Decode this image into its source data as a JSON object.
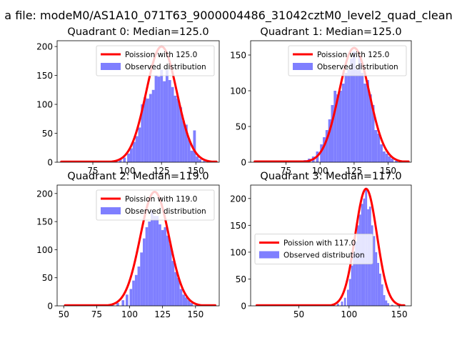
{
  "figure": {
    "suptitle": "a file: modeM0/AS1A10_071T63_9000004486_31042cztM0_level2_quad_clean"
  },
  "colors": {
    "hist": "#7f7fff",
    "curve": "#ff0000",
    "curve_highlight": "#ff8c8c",
    "axis": "#000000",
    "background": "#ffffff"
  },
  "chart_data": [
    {
      "type": "bar",
      "title": "Quadrant 0: Median=125.0",
      "xlim": [
        49,
        167
      ],
      "ylim": [
        0,
        210
      ],
      "xticks": [
        75,
        100,
        125,
        150
      ],
      "yticks": [
        0,
        50,
        100,
        150,
        200
      ],
      "legend": {
        "placement": "upper right",
        "entries": [
          "Poission with 125.0",
          "Observed distribution"
        ]
      },
      "poisson_mean": 125.0,
      "curve_peak": 200,
      "curve_x": [
        52,
        165
      ],
      "bins": [
        [
          52,
          1
        ],
        [
          55,
          1
        ],
        [
          58,
          1
        ],
        [
          61,
          1
        ],
        [
          64,
          1
        ],
        [
          67,
          1
        ],
        [
          70,
          1
        ],
        [
          73,
          1
        ],
        [
          76,
          1
        ],
        [
          79,
          1
        ],
        [
          82,
          1
        ],
        [
          85,
          1
        ],
        [
          88,
          2
        ],
        [
          91,
          3
        ],
        [
          94,
          5
        ],
        [
          97,
          8
        ],
        [
          100,
          15
        ],
        [
          102,
          24
        ],
        [
          104,
          35
        ],
        [
          106,
          45
        ],
        [
          108,
          60
        ],
        [
          110,
          100
        ],
        [
          112,
          112
        ],
        [
          114,
          110
        ],
        [
          116,
          118
        ],
        [
          118,
          125
        ],
        [
          120,
          150
        ],
        [
          122,
          148
        ],
        [
          124,
          160
        ],
        [
          126,
          140
        ],
        [
          128,
          160
        ],
        [
          130,
          142
        ],
        [
          132,
          130
        ],
        [
          134,
          115
        ],
        [
          136,
          110
        ],
        [
          138,
          95
        ],
        [
          140,
          72
        ],
        [
          142,
          65
        ],
        [
          144,
          40
        ],
        [
          146,
          20
        ],
        [
          148,
          55
        ],
        [
          150,
          10
        ],
        [
          152,
          5
        ],
        [
          155,
          2
        ],
        [
          158,
          1
        ],
        [
          162,
          1
        ]
      ]
    },
    {
      "type": "bar",
      "title": "Quadrant 1: Median=125.0",
      "xlim": [
        49,
        167
      ],
      "ylim": [
        0,
        170
      ],
      "xticks": [
        75,
        100,
        125,
        150
      ],
      "yticks": [
        0,
        50,
        100,
        150
      ],
      "legend": {
        "placement": "upper right",
        "entries": [
          "Poission with 125.0",
          "Observed distribution"
        ]
      },
      "poisson_mean": 125.0,
      "curve_peak": 160,
      "curve_x": [
        52,
        165
      ],
      "bins": [
        [
          52,
          1
        ],
        [
          58,
          1
        ],
        [
          64,
          1
        ],
        [
          70,
          1
        ],
        [
          76,
          1
        ],
        [
          79,
          2
        ],
        [
          82,
          1
        ],
        [
          85,
          2
        ],
        [
          88,
          3
        ],
        [
          91,
          5
        ],
        [
          94,
          8
        ],
        [
          97,
          15
        ],
        [
          100,
          25
        ],
        [
          102,
          35
        ],
        [
          104,
          45
        ],
        [
          106,
          60
        ],
        [
          108,
          80
        ],
        [
          110,
          100
        ],
        [
          112,
          95
        ],
        [
          114,
          100
        ],
        [
          116,
          110
        ],
        [
          118,
          125
        ],
        [
          120,
          130
        ],
        [
          122,
          145
        ],
        [
          124,
          155
        ],
        [
          126,
          130
        ],
        [
          128,
          150
        ],
        [
          130,
          125
        ],
        [
          132,
          110
        ],
        [
          134,
          115
        ],
        [
          136,
          95
        ],
        [
          138,
          80
        ],
        [
          140,
          45
        ],
        [
          142,
          40
        ],
        [
          144,
          25
        ],
        [
          146,
          15
        ],
        [
          148,
          12
        ],
        [
          150,
          8
        ],
        [
          152,
          5
        ],
        [
          155,
          2
        ],
        [
          158,
          1
        ],
        [
          162,
          1
        ]
      ]
    },
    {
      "type": "bar",
      "title": "Quadrant 2: Median=119.0",
      "xlim": [
        45,
        168
      ],
      "ylim": [
        0,
        215
      ],
      "xticks": [
        50,
        75,
        100,
        125,
        150
      ],
      "yticks": [
        0,
        50,
        100,
        150,
        200
      ],
      "legend": {
        "placement": "upper right",
        "entries": [
          "Poission with 119.0",
          "Observed distribution"
        ]
      },
      "poisson_mean": 119.0,
      "curve_peak": 203,
      "curve_x": [
        51,
        165
      ],
      "bins": [
        [
          51,
          1
        ],
        [
          56,
          1
        ],
        [
          62,
          1
        ],
        [
          68,
          1
        ],
        [
          74,
          1
        ],
        [
          80,
          2
        ],
        [
          86,
          3
        ],
        [
          90,
          5
        ],
        [
          94,
          10
        ],
        [
          97,
          20
        ],
        [
          100,
          30
        ],
        [
          102,
          45
        ],
        [
          104,
          55
        ],
        [
          106,
          70
        ],
        [
          108,
          95
        ],
        [
          110,
          120
        ],
        [
          112,
          140
        ],
        [
          114,
          150
        ],
        [
          116,
          170
        ],
        [
          118,
          160
        ],
        [
          120,
          160
        ],
        [
          122,
          145
        ],
        [
          124,
          135
        ],
        [
          126,
          140
        ],
        [
          128,
          125
        ],
        [
          130,
          110
        ],
        [
          132,
          80
        ],
        [
          134,
          60
        ],
        [
          136,
          50
        ],
        [
          138,
          30
        ],
        [
          140,
          20
        ],
        [
          142,
          15
        ],
        [
          144,
          10
        ],
        [
          146,
          5
        ],
        [
          150,
          2
        ],
        [
          155,
          1
        ],
        [
          160,
          1
        ]
      ]
    },
    {
      "type": "bar",
      "title": "Quadrant 3: Median=117.0",
      "xlim": [
        2,
        162
      ],
      "ylim": [
        0,
        225
      ],
      "xticks": [
        50,
        100,
        150
      ],
      "yticks": [
        0,
        50,
        100,
        150,
        200
      ],
      "legend": {
        "placement": "center left",
        "entries": [
          "Poission with 117.0",
          "Observed distribution"
        ]
      },
      "poisson_mean": 117.0,
      "curve_peak": 218,
      "curve_x": [
        8,
        155
      ],
      "bins": [
        [
          8,
          1
        ],
        [
          20,
          1
        ],
        [
          30,
          1
        ],
        [
          40,
          1
        ],
        [
          50,
          1
        ],
        [
          60,
          1
        ],
        [
          70,
          1
        ],
        [
          78,
          1
        ],
        [
          84,
          2
        ],
        [
          88,
          4
        ],
        [
          92,
          8
        ],
        [
          95,
          15
        ],
        [
          98,
          30
        ],
        [
          100,
          50
        ],
        [
          102,
          75
        ],
        [
          104,
          100
        ],
        [
          106,
          120
        ],
        [
          108,
          150
        ],
        [
          110,
          170
        ],
        [
          112,
          190
        ],
        [
          114,
          200
        ],
        [
          116,
          220
        ],
        [
          118,
          180
        ],
        [
          120,
          185
        ],
        [
          122,
          150
        ],
        [
          124,
          130
        ],
        [
          126,
          100
        ],
        [
          128,
          80
        ],
        [
          130,
          60
        ],
        [
          132,
          40
        ],
        [
          134,
          20
        ],
        [
          136,
          10
        ],
        [
          138,
          5
        ],
        [
          142,
          2
        ],
        [
          148,
          1
        ]
      ]
    }
  ]
}
